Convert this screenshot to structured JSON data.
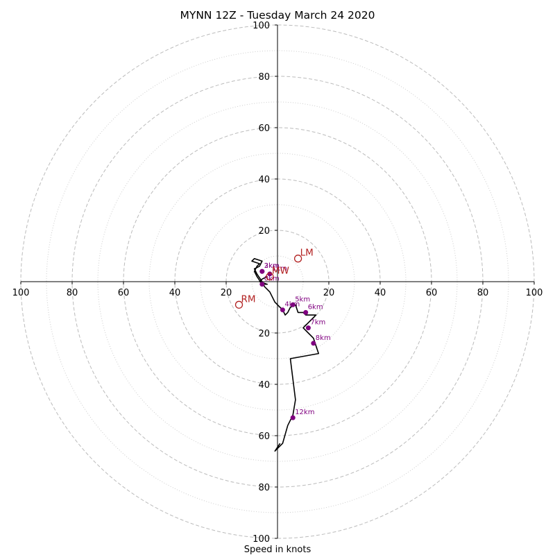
{
  "chart_data": {
    "type": "hodograph",
    "title": "MYNN 12Z - Tuesday March 24 2020",
    "xlabel": "Speed in knots",
    "range": [
      -100,
      100
    ],
    "tick_labels": [
      "100",
      "80",
      "60",
      "40",
      "20",
      "20",
      "40",
      "60",
      "80",
      "100"
    ],
    "tick_values": [
      -100,
      -80,
      -60,
      -40,
      -20,
      20,
      40,
      60,
      80,
      100
    ],
    "ring_speeds_dashed": [
      20,
      40,
      60,
      80,
      100
    ],
    "ring_speeds_dotted": [
      10,
      30,
      50,
      70,
      90
    ],
    "grid": true,
    "colors": {
      "trace": "#000000",
      "height_marker": "#800080",
      "motion_marker": "#b22222",
      "grid": "#bbbbbb"
    },
    "trace": {
      "u": [
        -4,
        -6,
        -7,
        -4,
        -6,
        -8,
        -9,
        -8,
        -7,
        -10,
        -9,
        -6,
        -7,
        -9,
        -8,
        -6,
        -5,
        -3,
        -1,
        0,
        2,
        3,
        4,
        5,
        7,
        8,
        10,
        11,
        15,
        12,
        11,
        10,
        12,
        14,
        16,
        5,
        6,
        7,
        6,
        5,
        4,
        2,
        -1,
        1
      ],
      "v": [
        2,
        1,
        0,
        -1,
        -1,
        2,
        4,
        6,
        7,
        8,
        9,
        8,
        6,
        5,
        3,
        0,
        -2,
        -4,
        -8,
        -9,
        -11,
        -13,
        -12,
        -10,
        -9,
        -12,
        -12,
        -13,
        -13,
        -16,
        -17,
        -18,
        -20,
        -22,
        -28,
        -30,
        -38,
        -46,
        -52,
        -54,
        -56,
        -63,
        -66,
        -63
      ]
    },
    "height_markers": [
      {
        "label": "1km",
        "u": -3,
        "v": 3
      },
      {
        "label": "2km",
        "u": -6,
        "v": 4
      },
      {
        "label": "3km",
        "u": -6,
        "v": 4
      },
      {
        "label": "4km",
        "u": 2,
        "v": -11
      },
      {
        "label": "5km",
        "u": 6,
        "v": -9
      },
      {
        "label": "6km",
        "u": 11,
        "v": -12
      },
      {
        "label": "7km",
        "u": 12,
        "v": -18
      },
      {
        "label": "8km",
        "u": 14,
        "v": -24
      },
      {
        "label": "12km",
        "u": 6,
        "v": -53
      },
      {
        "label": "0km",
        "u": -6,
        "v": -1
      }
    ],
    "storm_motion": [
      {
        "label": "LM",
        "u": 8,
        "v": 9
      },
      {
        "label": "MW",
        "u": -3,
        "v": 2
      },
      {
        "label": "RM",
        "u": -15,
        "v": -9
      }
    ]
  }
}
